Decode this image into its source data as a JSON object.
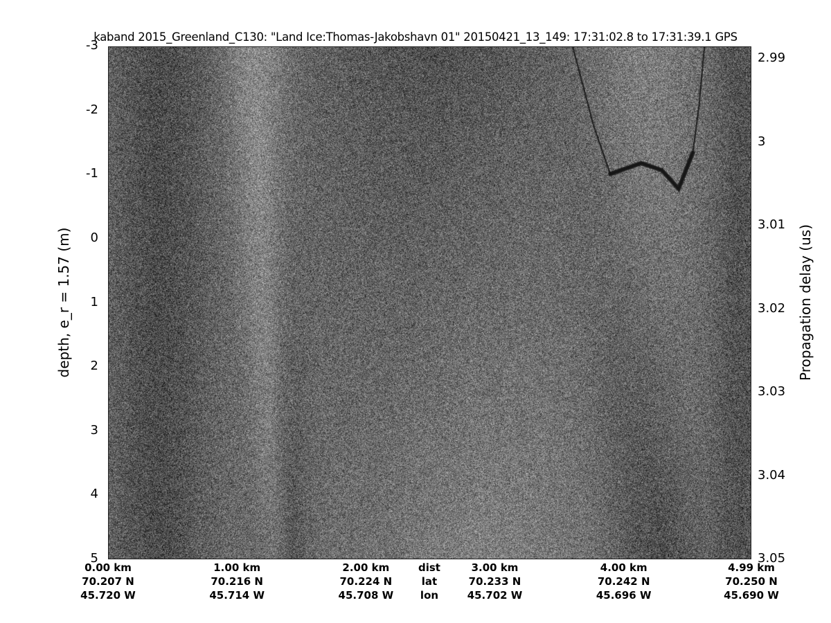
{
  "chart_data": {
    "type": "heatmap",
    "title": "kaband 2015_Greenland_C130: \"Land Ice:Thomas-Jakobshavn 01\"  20150421_13_149: 17:31:02.8 to 17:31:39.1 GPS",
    "ylabel": "depth, e_r = 1.57 (m)",
    "ylabel_right": "Propagation delay (us)",
    "colormap": "gray",
    "ylim": [
      -3,
      5
    ],
    "ylim_right": [
      2.9885,
      3.05
    ],
    "xlim_km": [
      0,
      4.99
    ],
    "y_ticks": [
      "-3",
      "-2",
      "-1",
      "0",
      "1",
      "2",
      "3",
      "4",
      "5"
    ],
    "y_right_ticks": [
      "2.99",
      "3",
      "3.01",
      "3.02",
      "3.03",
      "3.04",
      "3.05"
    ],
    "x_rows": {
      "labels": [
        "dist",
        "lat",
        "lon"
      ],
      "dist": [
        "0.00 km",
        "1.00 km",
        "2.00 km",
        "3.00 km",
        "4.00 km",
        "4.99 km"
      ],
      "lat": [
        "70.207 N",
        "70.216 N",
        "70.224 N",
        "70.233 N",
        "70.242 N",
        "70.250 N"
      ],
      "lon": [
        "45.720 W",
        "45.714 W",
        "45.708 W",
        "45.702 W",
        "45.696 W",
        "45.690 W"
      ],
      "dist_km": [
        0,
        1,
        2,
        3,
        4,
        4.99
      ]
    },
    "reflector": {
      "x_km": [
        3.6,
        3.76,
        3.89,
        4.13,
        4.29,
        4.42,
        4.53,
        4.58,
        4.62
      ],
      "depth_m": [
        -3,
        -1.78,
        -1.02,
        -1.19,
        -1.08,
        -0.79,
        -1.35,
        -2.1,
        -3
      ]
    }
  }
}
